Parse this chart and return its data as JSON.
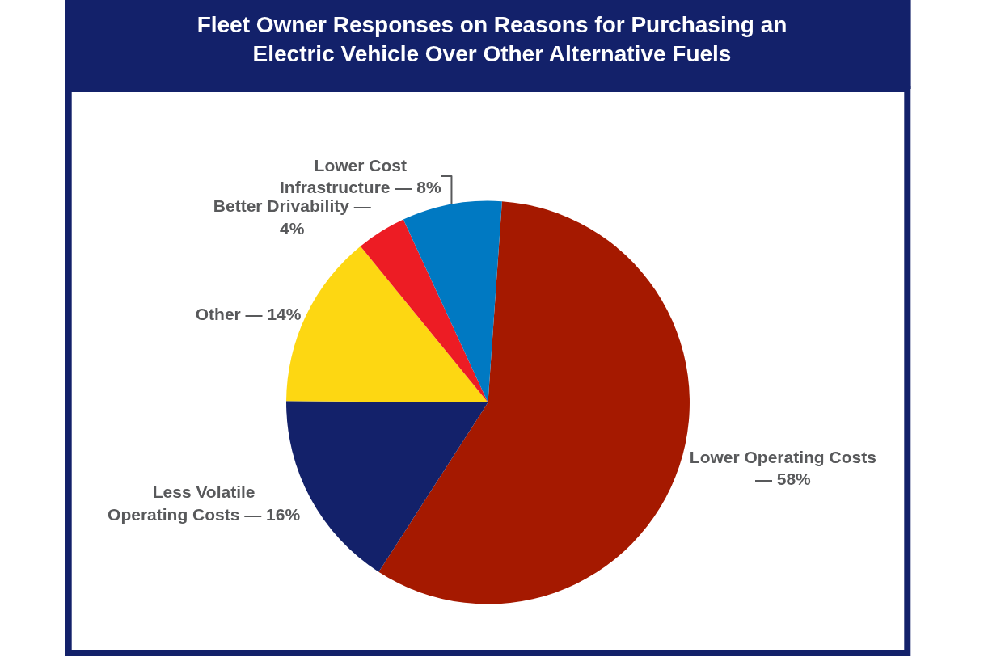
{
  "chart_data": {
    "type": "pie",
    "title": "Fleet Owner Responses on Reasons for Purchasing an Electric Vehicle Over Other Alternative Fuels",
    "categories": [
      "Lower Operating Costs — 58%",
      "Less Volatile Operating Costs — 16%",
      "Other — 14%",
      "Better Drivability — 4%",
      "Lower Cost Infrastructure — 8%"
    ],
    "values": [
      58,
      16,
      14,
      4,
      8
    ],
    "colors": [
      "#a51900",
      "#13216a",
      "#fdd712",
      "#ed1c24",
      "#0079c2"
    ]
  }
}
